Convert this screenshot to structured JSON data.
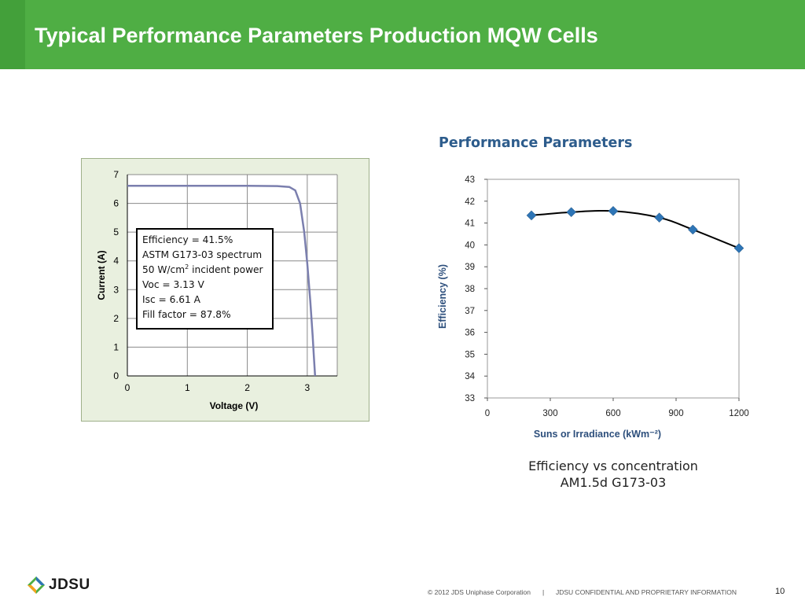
{
  "slide": {
    "title": "Typical Performance Parameters Production MQW Cells",
    "accent_color": "#4fae44"
  },
  "iv_chart": {
    "legend_lines": [
      "Efficiency = 41.5%",
      "ASTM G173-03 spectrum",
      "50 W/cm",
      "2",
      " incident power",
      "Voc = 3.13 V",
      "Isc = 6.61 A",
      "Fill factor = 87.8%"
    ]
  },
  "efficiency_chart": {
    "heading": "Performance Parameters",
    "caption_line1": "Efficiency vs concentration",
    "caption_line2": "AM1.5d G173-03"
  },
  "footer": {
    "logo": "JDSU",
    "copyright": "© 2012 JDS Uniphase Corporation",
    "separator": "|",
    "confidential": "JDSU CONFIDENTIAL AND PROPRIETARY INFORMATION",
    "page_number": "10"
  },
  "chart_data": [
    {
      "type": "line",
      "xlabel": "Voltage (V)",
      "ylabel": "Current (A)",
      "xlim": [
        0,
        3.5
      ],
      "ylim": [
        0,
        7
      ],
      "xticks": [
        "0",
        "1",
        "2",
        "3"
      ],
      "yticks": [
        "0",
        "1",
        "2",
        "3",
        "4",
        "5",
        "6",
        "7"
      ],
      "grid": true,
      "line_color": "#7b7fae",
      "series": [
        {
          "x": [
            0,
            0.5,
            1.0,
            1.5,
            2.0,
            2.5,
            2.7,
            2.8,
            2.88,
            2.95,
            3.0,
            3.05,
            3.09,
            3.11,
            3.13
          ],
          "y": [
            6.61,
            6.61,
            6.61,
            6.61,
            6.61,
            6.6,
            6.57,
            6.45,
            6.0,
            5.0,
            3.9,
            2.6,
            1.4,
            0.7,
            0.0
          ]
        }
      ]
    },
    {
      "type": "line",
      "xlabel": "Suns or Irradiance (kWm⁻²)",
      "ylabel": "Efficiency (%)",
      "xlim": [
        0,
        1200
      ],
      "ylim": [
        33,
        43
      ],
      "xticks": [
        "0",
        "300",
        "600",
        "900",
        "1200"
      ],
      "yticks": [
        "33",
        "34",
        "35",
        "36",
        "37",
        "38",
        "39",
        "40",
        "41",
        "42",
        "43"
      ],
      "grid": false,
      "marker": "diamond",
      "marker_color": "#2e75b6",
      "line_color": "#000000",
      "series": [
        {
          "x": [
            210,
            400,
            600,
            820,
            980,
            1200
          ],
          "y": [
            41.35,
            41.5,
            41.55,
            41.25,
            40.7,
            39.85
          ]
        }
      ]
    }
  ]
}
